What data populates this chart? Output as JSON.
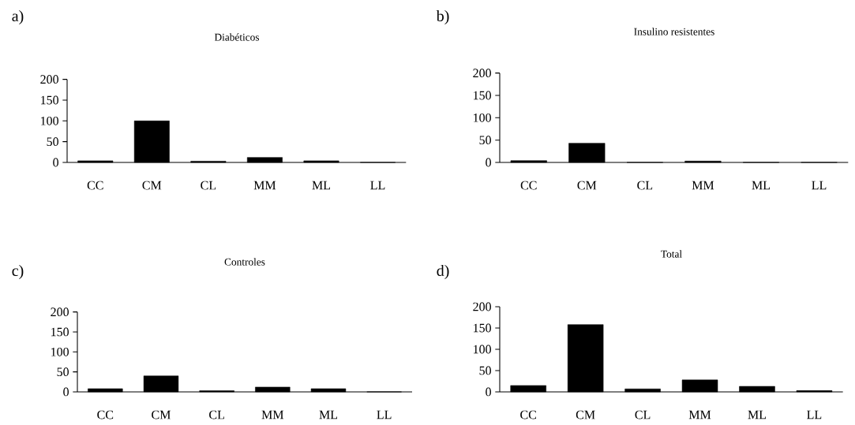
{
  "chart_data": [
    {
      "type": "bar",
      "title": "Diabéticos",
      "annotations": [
        "a)"
      ],
      "categories": [
        "CC",
        "CM",
        "CL",
        "MM",
        "ML",
        "LL"
      ],
      "values": [
        4,
        100,
        3,
        12,
        4,
        0
      ],
      "color": "#000000",
      "ylim": [
        0,
        200
      ],
      "yticks": [
        0,
        50,
        100,
        150,
        200
      ]
    },
    {
      "type": "bar",
      "title": "Insulino resistentes",
      "annotations": [
        "b)"
      ],
      "categories": [
        "CC",
        "CM",
        "CL",
        "MM",
        "ML",
        "LL"
      ],
      "values": [
        4,
        43,
        0,
        3,
        0,
        0
      ],
      "color": "#000000",
      "ylim": [
        0,
        200
      ],
      "yticks": [
        0,
        50,
        100,
        150,
        200
      ]
    },
    {
      "type": "bar",
      "title": "Controles",
      "annotations": [
        "c)"
      ],
      "categories": [
        "CC",
        "CM",
        "CL",
        "MM",
        "ML",
        "LL"
      ],
      "values": [
        8,
        40,
        3,
        12,
        8,
        0
      ],
      "color": "#000000",
      "ylim": [
        0,
        200
      ],
      "yticks": [
        0,
        50,
        100,
        150,
        200
      ]
    },
    {
      "type": "bar",
      "title": "Total",
      "annotations": [
        "d)"
      ],
      "categories": [
        "CC",
        "CM",
        "CL",
        "MM",
        "ML",
        "LL"
      ],
      "values": [
        15,
        158,
        7,
        28,
        13,
        3
      ],
      "color": "#000000",
      "ylim": [
        0,
        200
      ],
      "yticks": [
        0,
        50,
        100,
        150,
        200
      ]
    }
  ]
}
